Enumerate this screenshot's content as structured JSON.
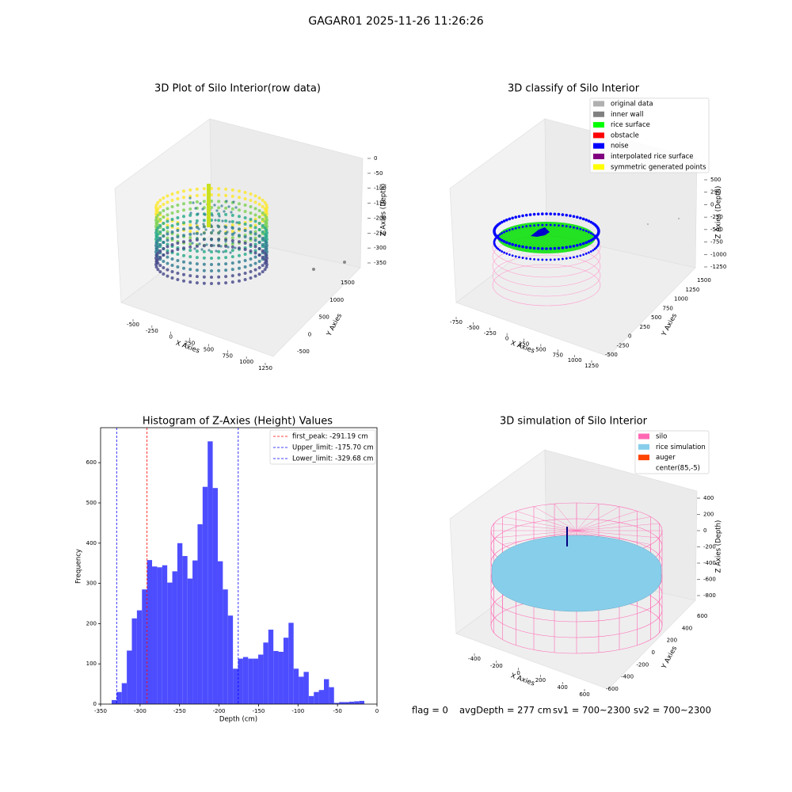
{
  "title": "GAGAR01 2025-11-26 11:26:26",
  "chart_data": [
    {
      "type": "scatter3d",
      "title": "3D Plot of Silo Interior(row data)",
      "xlabel": "X Axies",
      "ylabel": "Y Axies",
      "zlabel": "Z Axies (Depth)",
      "xticks": [
        -500,
        -250,
        0,
        250,
        500,
        750,
        1000,
        1250
      ],
      "yticks": [
        -500,
        0,
        500,
        1000,
        1500
      ],
      "zticks": [
        0,
        -50,
        -100,
        -150,
        -200,
        -250,
        -300,
        -350
      ]
    },
    {
      "type": "scatter3d",
      "title": "3D classify of Silo Interior",
      "xlabel": "X Axies",
      "ylabel": "Y Axies",
      "zlabel": "Z Axies (Depth)",
      "xticks": [
        -750,
        -500,
        -250,
        0,
        250,
        500,
        750,
        1000,
        1250
      ],
      "yticks": [
        -500,
        -250,
        0,
        250,
        500,
        750,
        1000,
        1250,
        1500
      ],
      "zticks": [
        500,
        250,
        0,
        -250,
        -500,
        -750,
        -1000,
        -1250
      ],
      "legend": [
        {
          "name": "original data",
          "color": "#b0b0b0"
        },
        {
          "name": "inner wall",
          "color": "#808080"
        },
        {
          "name": "rice surface",
          "color": "#00ff00"
        },
        {
          "name": "obstacle",
          "color": "#ff0000"
        },
        {
          "name": "noise",
          "color": "#0000ff"
        },
        {
          "name": "interpolated rice surface",
          "color": "#800080"
        },
        {
          "name": "symmetric generated points",
          "color": "#ffff00"
        }
      ]
    },
    {
      "type": "histogram",
      "title": "Histogram of Z-Axies (Height) Values",
      "xlabel": "Depth (cm)",
      "ylabel": "Frequency",
      "color": "#4d4dff",
      "bins": [
        -336,
        -329.6,
        -323.2,
        -316.8,
        -310.4,
        -304,
        -297.6,
        -291.2,
        -284.8,
        -278.4,
        -272,
        -265.6,
        -259.2,
        -252.8,
        -246.4,
        -240,
        -233.6,
        -227.2,
        -220.8,
        -214.4,
        -208,
        -201.6,
        -195.2,
        -188.8,
        -182.4,
        -176,
        -169.6,
        -163.2,
        -156.8,
        -150.4,
        -144,
        -137.6,
        -131.2,
        -124.8,
        -118.4,
        -112,
        -105.6,
        -99.2,
        -92.8,
        -86.4,
        -80,
        -73.6,
        -67.2,
        -60.8,
        -54.4,
        -48,
        -41.6,
        -35.2,
        -28.8,
        -22.4,
        -16
      ],
      "counts": [
        10,
        30,
        52,
        133,
        213,
        233,
        285,
        358,
        342,
        340,
        345,
        302,
        330,
        400,
        368,
        312,
        357,
        447,
        540,
        653,
        537,
        355,
        285,
        220,
        88,
        113,
        117,
        113,
        113,
        123,
        153,
        185,
        132,
        130,
        165,
        202,
        88,
        68,
        80,
        20,
        30,
        35,
        62,
        42,
        3,
        5,
        5,
        6,
        7,
        8
      ],
      "xlim": [
        -350,
        0
      ],
      "ylim": [
        0,
        687
      ],
      "xticks": [
        -350,
        -300,
        -250,
        -200,
        -150,
        -100,
        -50,
        0
      ],
      "yticks": [
        0,
        100,
        200,
        300,
        400,
        500,
        600
      ],
      "lines": [
        {
          "value": -291.19,
          "label": "first_peak: -291.19 cm",
          "color": "#ff0000"
        },
        {
          "value": -175.7,
          "label": "Upper_limit: -175.70 cm",
          "color": "#0000ff"
        },
        {
          "value": -329.68,
          "label": "Lower_limit: -329.68 cm",
          "color": "#0000ff"
        }
      ]
    },
    {
      "type": "scatter3d",
      "title": "3D simulation of Silo Interior",
      "xlabel": "X Axies",
      "ylabel": "Y Axies",
      "zlabel": "Z Axies (Depth)",
      "xticks": [
        -400,
        -200,
        0,
        200,
        400,
        600
      ],
      "yticks": [
        -600,
        -400,
        -200,
        0,
        200,
        400,
        600
      ],
      "zticks": [
        400,
        200,
        0,
        -200,
        -400,
        -600,
        -800
      ],
      "legend": [
        {
          "name": "silo",
          "color": "#ff69b4"
        },
        {
          "name": "rice simulation",
          "color": "#87ceeb"
        },
        {
          "name": "auger",
          "color": "#ff4500"
        },
        {
          "name": "center(85,-5)",
          "color": "#ffffff"
        }
      ]
    }
  ],
  "footer": [
    "flag = 0",
    "avgDepth = 277 cm",
    "sv1 = 700~2300",
    "sv2 = 700~2300"
  ]
}
